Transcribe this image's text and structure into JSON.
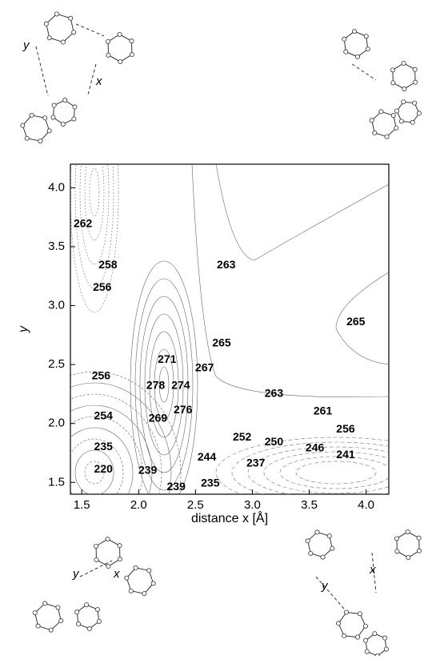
{
  "chart_data": {
    "type": "contour",
    "x_label": "distance x [Å]",
    "y_label": "y",
    "xlim": [
      1.4,
      4.2
    ],
    "ylim": [
      1.4,
      4.2
    ],
    "xticks": [
      1.5,
      {
        "value": 2,
        "label": "2.0"
      },
      2.5,
      {
        "value": 3,
        "label": "3.0"
      },
      3.5,
      {
        "value": 4,
        "label": "4.0"
      }
    ],
    "yticks": [
      1.5,
      {
        "value": 2,
        "label": "2.0"
      },
      2.5,
      {
        "value": 3,
        "label": "3.0"
      },
      3.5,
      {
        "value": 4,
        "label": "4.0"
      }
    ],
    "contour_labels": {
      "x": [
        1.51,
        1.73,
        1.68,
        2.77,
        3.91,
        2.73,
        2.25,
        2.58,
        1.67,
        2.15,
        2.37,
        3.19,
        2.39,
        3.62,
        1.69,
        2.17,
        3.82,
        2.91,
        3.19,
        1.69,
        3.55,
        3.82,
        2.6,
        1.69,
        2.08,
        3.03,
        2.33,
        2.63
      ],
      "y": [
        3.69,
        3.34,
        3.15,
        3.34,
        2.86,
        2.68,
        2.54,
        2.47,
        2.4,
        2.32,
        2.32,
        2.25,
        2.11,
        2.1,
        2.06,
        2.04,
        1.95,
        1.88,
        1.84,
        1.8,
        1.79,
        1.73,
        1.71,
        1.61,
        1.6,
        1.66,
        1.46,
        1.49
      ],
      "values": [
        262,
        258,
        256,
        263,
        265,
        265,
        271,
        267,
        256,
        278,
        274,
        263,
        276,
        261,
        254,
        269,
        256,
        252,
        250,
        235,
        246,
        241,
        244,
        220,
        239,
        237,
        239,
        235
      ]
    },
    "molecule_labels": [
      "y",
      "x",
      "y",
      "x",
      "y",
      "x"
    ]
  }
}
